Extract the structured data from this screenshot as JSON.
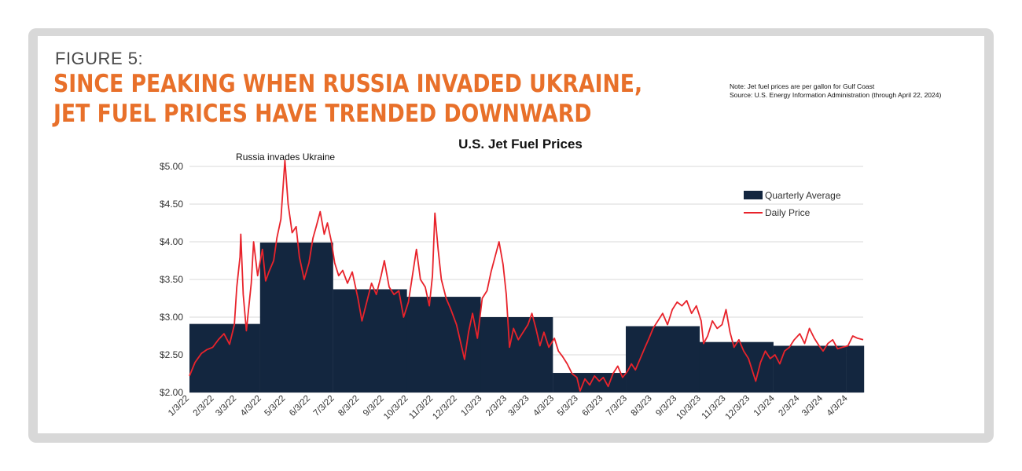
{
  "figure_label": "FIGURE 5:",
  "headline": {
    "line1": "SINCE PEAKING WHEN RUSSIA INVADED UKRAINE,",
    "line2": "JET FUEL PRICES HAVE TRENDED DOWNWARD"
  },
  "note": {
    "line1": "Note: Jet fuel prices are per gallon for Gulf Coast",
    "line2": "Source: U.S. Energy Information Administration (through April 22, 2024)"
  },
  "colors": {
    "accent": "#e8702a",
    "quarterly_fill": "#13263f",
    "daily_line": "#e8232b",
    "grid": "#d9d9d9"
  },
  "chart_data": {
    "type": "area",
    "title": "U.S. Jet Fuel Prices",
    "ylim": [
      2.0,
      5.0
    ],
    "yticks": [
      2.0,
      2.5,
      3.0,
      3.5,
      4.0,
      4.5,
      5.0
    ],
    "ytick_labels": [
      "$2.00",
      "$2.50",
      "$3.00",
      "$3.50",
      "$4.00",
      "$4.50",
      "$5.00"
    ],
    "xlim": [
      "1/3/22",
      "4/22/24"
    ],
    "xtick_labels": [
      "1/3/22",
      "2/3/22",
      "3/3/22",
      "4/3/22",
      "5/3/22",
      "6/3/22",
      "7/3/22",
      "8/3/22",
      "9/3/22",
      "10/3/22",
      "11/3/22",
      "12/3/22",
      "1/3/23",
      "2/3/23",
      "3/3/23",
      "4/3/23",
      "5/3/23",
      "6/3/23",
      "7/3/23",
      "8/3/23",
      "9/3/23",
      "10/3/23",
      "11/3/23",
      "12/3/23",
      "1/3/24",
      "2/3/24",
      "3/3/24",
      "4/3/24"
    ],
    "grid": true,
    "legend_position": "top-right",
    "annotation": {
      "text": "Russia invades Ukraine",
      "x": "2/24/22"
    },
    "series": [
      {
        "name": "Quarterly Average",
        "type": "step-area",
        "quarters": [
          {
            "start": "1/3/22",
            "end": "3/31/22",
            "value": 2.91
          },
          {
            "start": "4/1/22",
            "end": "6/30/22",
            "value": 3.99
          },
          {
            "start": "7/1/22",
            "end": "9/30/22",
            "value": 3.37
          },
          {
            "start": "10/1/22",
            "end": "12/31/22",
            "value": 3.27
          },
          {
            "start": "1/1/23",
            "end": "3/31/23",
            "value": 3.0
          },
          {
            "start": "4/1/23",
            "end": "6/30/23",
            "value": 2.26
          },
          {
            "start": "7/1/23",
            "end": "9/30/23",
            "value": 2.88
          },
          {
            "start": "10/1/23",
            "end": "12/31/23",
            "value": 2.67
          },
          {
            "start": "1/1/24",
            "end": "3/31/24",
            "value": 2.62
          },
          {
            "start": "4/1/24",
            "end": "4/22/24",
            "value": 2.62
          }
        ]
      },
      {
        "name": "Daily Price",
        "type": "line",
        "points": [
          [
            "1/3/22",
            2.22
          ],
          [
            "1/10/22",
            2.4
          ],
          [
            "1/18/22",
            2.52
          ],
          [
            "1/25/22",
            2.57
          ],
          [
            "2/1/22",
            2.6
          ],
          [
            "2/8/22",
            2.7
          ],
          [
            "2/15/22",
            2.78
          ],
          [
            "2/22/22",
            2.64
          ],
          [
            "2/28/22",
            2.9
          ],
          [
            "3/3/22",
            3.4
          ],
          [
            "3/7/22",
            3.8
          ],
          [
            "3/8/22",
            4.1
          ],
          [
            "3/11/22",
            3.3
          ],
          [
            "3/15/22",
            2.82
          ],
          [
            "3/21/22",
            3.45
          ],
          [
            "3/24/22",
            4.0
          ],
          [
            "3/29/22",
            3.55
          ],
          [
            "4/4/22",
            3.9
          ],
          [
            "4/8/22",
            3.48
          ],
          [
            "4/12/22",
            3.6
          ],
          [
            "4/18/22",
            3.75
          ],
          [
            "4/22/22",
            4.05
          ],
          [
            "4/27/22",
            4.3
          ],
          [
            "5/2/22",
            5.08
          ],
          [
            "5/6/22",
            4.5
          ],
          [
            "5/11/22",
            4.12
          ],
          [
            "5/16/22",
            4.2
          ],
          [
            "5/20/22",
            3.8
          ],
          [
            "5/26/22",
            3.5
          ],
          [
            "6/1/22",
            3.72
          ],
          [
            "6/6/22",
            4.05
          ],
          [
            "6/10/22",
            4.2
          ],
          [
            "6/15/22",
            4.4
          ],
          [
            "6/20/22",
            4.1
          ],
          [
            "6/24/22",
            4.25
          ],
          [
            "6/29/22",
            4.0
          ],
          [
            "7/3/22",
            3.72
          ],
          [
            "7/8/22",
            3.55
          ],
          [
            "7/13/22",
            3.62
          ],
          [
            "7/19/22",
            3.45
          ],
          [
            "7/25/22",
            3.6
          ],
          [
            "8/1/22",
            3.25
          ],
          [
            "8/6/22",
            2.95
          ],
          [
            "8/12/22",
            3.2
          ],
          [
            "8/18/22",
            3.45
          ],
          [
            "8/24/22",
            3.3
          ],
          [
            "8/30/22",
            3.55
          ],
          [
            "9/3/22",
            3.75
          ],
          [
            "9/9/22",
            3.4
          ],
          [
            "9/15/22",
            3.3
          ],
          [
            "9/21/22",
            3.35
          ],
          [
            "9/27/22",
            3.0
          ],
          [
            "10/3/22",
            3.2
          ],
          [
            "10/8/22",
            3.55
          ],
          [
            "10/13/22",
            3.9
          ],
          [
            "10/18/22",
            3.5
          ],
          [
            "10/24/22",
            3.4
          ],
          [
            "10/29/22",
            3.15
          ],
          [
            "11/2/22",
            3.55
          ],
          [
            "11/5/22",
            4.38
          ],
          [
            "11/9/22",
            3.9
          ],
          [
            "11/13/22",
            3.5
          ],
          [
            "11/19/22",
            3.25
          ],
          [
            "11/25/22",
            3.1
          ],
          [
            "12/2/22",
            2.9
          ],
          [
            "12/8/22",
            2.62
          ],
          [
            "12/12/22",
            2.44
          ],
          [
            "12/17/22",
            2.8
          ],
          [
            "12/22/22",
            3.05
          ],
          [
            "12/28/22",
            2.72
          ],
          [
            "1/3/23",
            3.25
          ],
          [
            "1/9/23",
            3.35
          ],
          [
            "1/14/23",
            3.6
          ],
          [
            "1/19/23",
            3.8
          ],
          [
            "1/24/23",
            4.0
          ],
          [
            "1/29/23",
            3.7
          ],
          [
            "2/2/23",
            3.3
          ],
          [
            "2/6/23",
            2.6
          ],
          [
            "2/11/23",
            2.85
          ],
          [
            "2/17/23",
            2.7
          ],
          [
            "2/23/23",
            2.8
          ],
          [
            "3/1/23",
            2.9
          ],
          [
            "3/6/23",
            3.05
          ],
          [
            "3/11/23",
            2.85
          ],
          [
            "3/16/23",
            2.62
          ],
          [
            "3/21/23",
            2.8
          ],
          [
            "3/27/23",
            2.6
          ],
          [
            "4/3/23",
            2.72
          ],
          [
            "4/8/23",
            2.55
          ],
          [
            "4/13/23",
            2.48
          ],
          [
            "4/19/23",
            2.38
          ],
          [
            "4/25/23",
            2.25
          ],
          [
            "5/1/23",
            2.2
          ],
          [
            "5/5/23",
            2.02
          ],
          [
            "5/11/23",
            2.18
          ],
          [
            "5/17/23",
            2.1
          ],
          [
            "5/23/23",
            2.22
          ],
          [
            "5/29/23",
            2.15
          ],
          [
            "6/3/23",
            2.2
          ],
          [
            "6/9/23",
            2.08
          ],
          [
            "6/15/23",
            2.25
          ],
          [
            "6/21/23",
            2.35
          ],
          [
            "6/27/23",
            2.2
          ],
          [
            "7/3/23",
            2.28
          ],
          [
            "7/8/23",
            2.38
          ],
          [
            "7/13/23",
            2.3
          ],
          [
            "7/19/23",
            2.45
          ],
          [
            "7/25/23",
            2.6
          ],
          [
            "7/30/23",
            2.72
          ],
          [
            "8/4/23",
            2.85
          ],
          [
            "8/10/23",
            2.95
          ],
          [
            "8/16/23",
            3.05
          ],
          [
            "8/22/23",
            2.9
          ],
          [
            "8/28/23",
            3.1
          ],
          [
            "9/3/23",
            3.2
          ],
          [
            "9/9/23",
            3.15
          ],
          [
            "9/15/23",
            3.22
          ],
          [
            "9/21/23",
            3.05
          ],
          [
            "9/27/23",
            3.15
          ],
          [
            "10/3/23",
            2.95
          ],
          [
            "10/6/23",
            2.65
          ],
          [
            "10/11/23",
            2.75
          ],
          [
            "10/17/23",
            2.95
          ],
          [
            "10/23/23",
            2.85
          ],
          [
            "10/29/23",
            2.9
          ],
          [
            "11/3/23",
            3.1
          ],
          [
            "11/8/23",
            2.8
          ],
          [
            "11/13/23",
            2.6
          ],
          [
            "11/19/23",
            2.7
          ],
          [
            "11/25/23",
            2.55
          ],
          [
            "12/1/23",
            2.45
          ],
          [
            "12/7/23",
            2.25
          ],
          [
            "12/10/23",
            2.15
          ],
          [
            "12/16/23",
            2.4
          ],
          [
            "12/22/23",
            2.55
          ],
          [
            "12/28/23",
            2.45
          ],
          [
            "1/3/24",
            2.5
          ],
          [
            "1/9/24",
            2.38
          ],
          [
            "1/15/24",
            2.55
          ],
          [
            "1/21/24",
            2.6
          ],
          [
            "1/27/24",
            2.7
          ],
          [
            "2/3/24",
            2.78
          ],
          [
            "2/9/24",
            2.65
          ],
          [
            "2/15/24",
            2.85
          ],
          [
            "2/21/24",
            2.72
          ],
          [
            "2/27/24",
            2.62
          ],
          [
            "3/3/24",
            2.55
          ],
          [
            "3/9/24",
            2.65
          ],
          [
            "3/15/24",
            2.7
          ],
          [
            "3/21/24",
            2.58
          ],
          [
            "3/27/24",
            2.6
          ],
          [
            "4/3/24",
            2.62
          ],
          [
            "4/9/24",
            2.75
          ],
          [
            "4/15/24",
            2.72
          ],
          [
            "4/22/24",
            2.7
          ]
        ]
      }
    ]
  }
}
